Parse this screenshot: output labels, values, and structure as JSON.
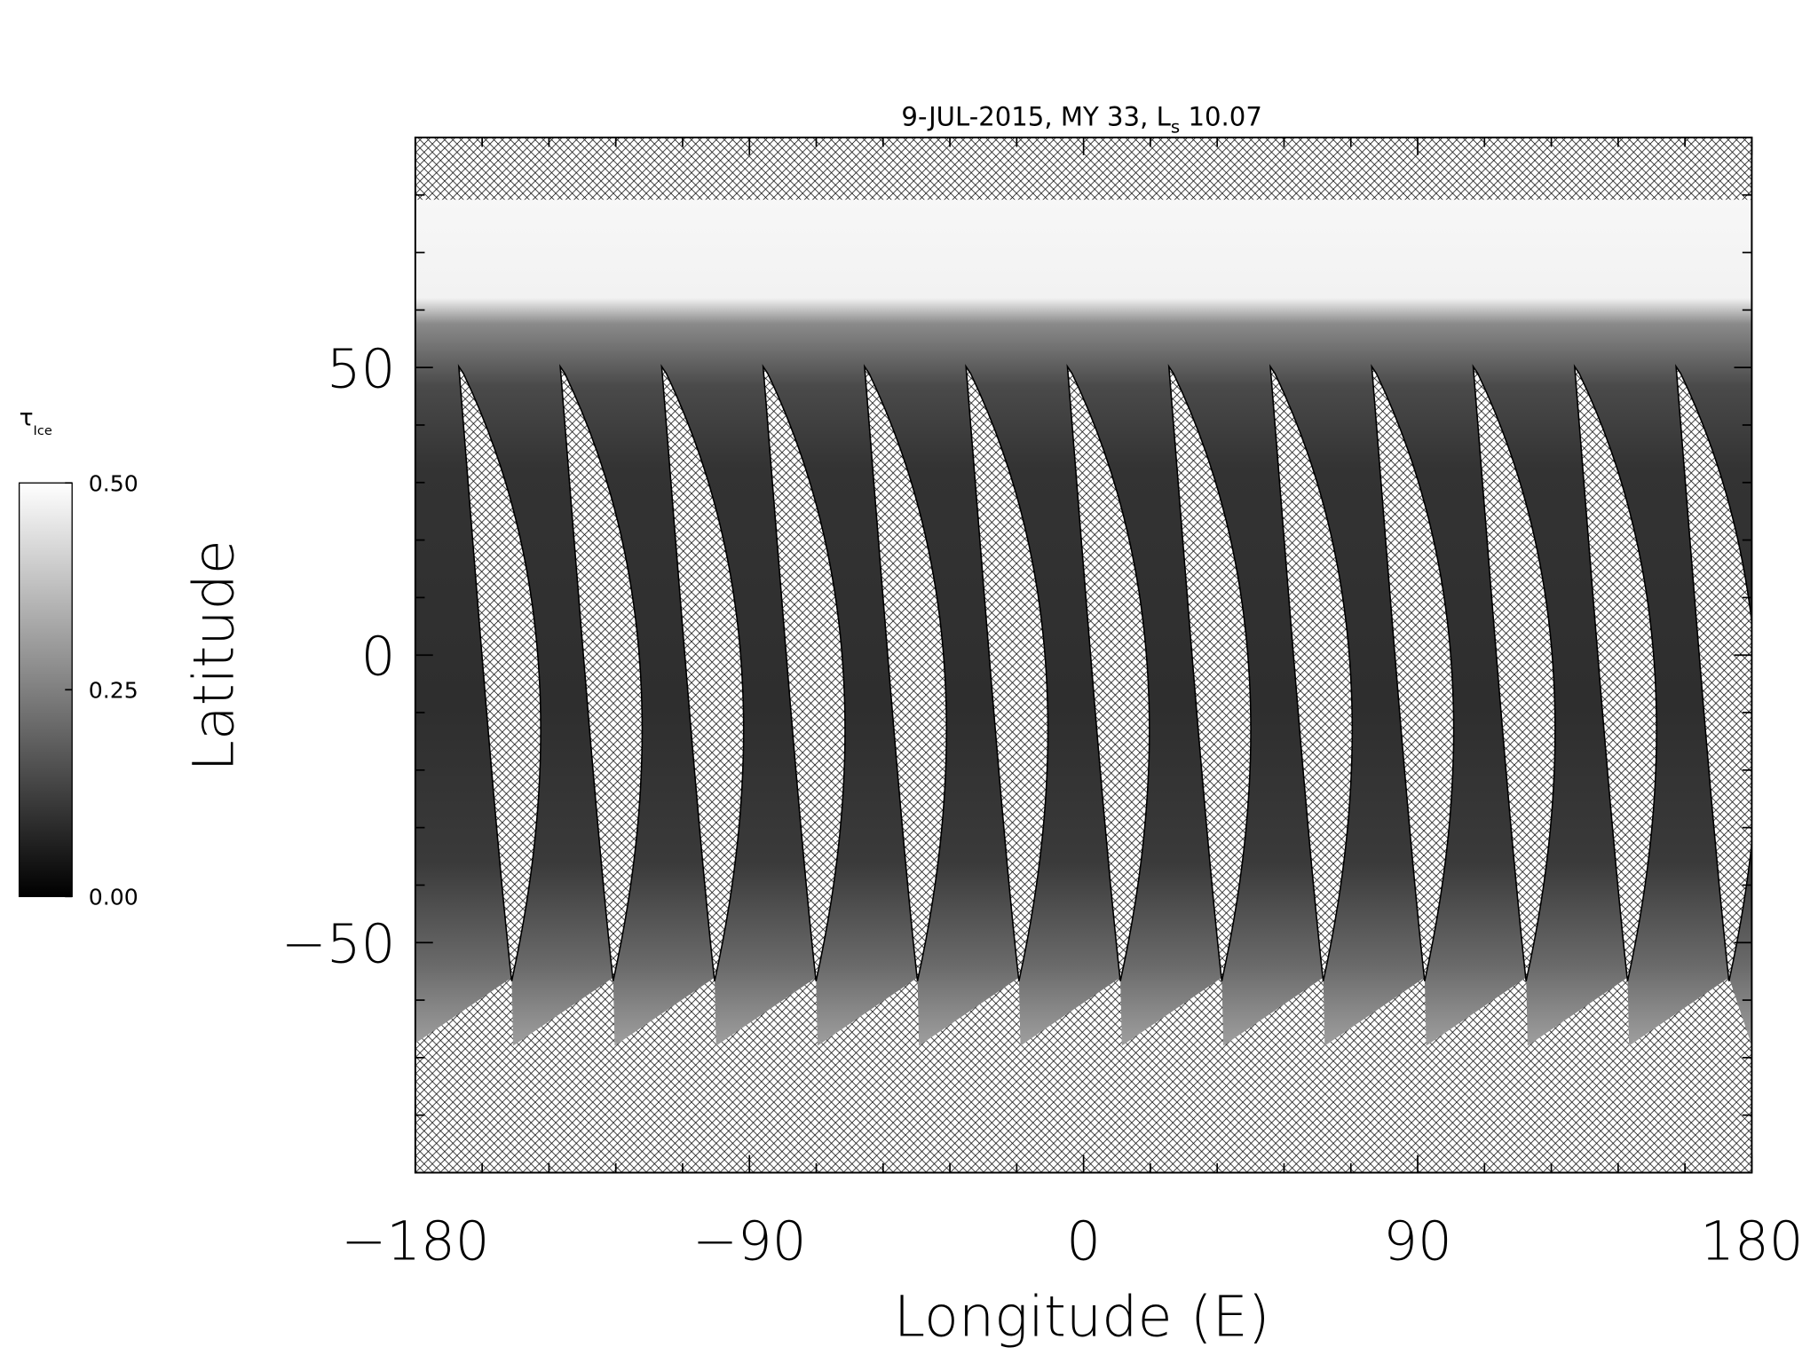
{
  "chart_data": {
    "type": "map",
    "title": {
      "prefix": "9-JUL-2015, MY 33,  L",
      "subscript": "s",
      "suffix": " 10.07"
    },
    "x_label": "Longitude (E)",
    "y_label": "Latitude",
    "xlim": [
      -180,
      180
    ],
    "xticks": [
      {
        "value": -180,
        "label": "−180"
      },
      {
        "value": -90,
        "label": "−90"
      },
      0,
      90,
      180
    ],
    "xminorticks": [
      -162,
      -144,
      -126,
      -108,
      -72,
      -54,
      -36,
      -18,
      18,
      36,
      54,
      72,
      108,
      126,
      144,
      162
    ],
    "ylim": [
      -90,
      90
    ],
    "yticks": [
      {
        "value": -50,
        "label": "−50"
      },
      0,
      50
    ],
    "yminorticks": [
      -80,
      -70,
      -60,
      -40,
      -30,
      -20,
      -10,
      10,
      20,
      30,
      40,
      60,
      70,
      80
    ],
    "colorbar": {
      "label": "τ",
      "label_subscript": "Ice",
      "lim": [
        0,
        0.5
      ],
      "ticks": [
        {
          "value": 0,
          "label": "0.00"
        },
        {
          "value": 0.25,
          "label": "0.25"
        },
        {
          "value": 0.5,
          "label": "0.50"
        }
      ],
      "colors": [
        "#000000",
        "#ffffff"
      ]
    }
  }
}
